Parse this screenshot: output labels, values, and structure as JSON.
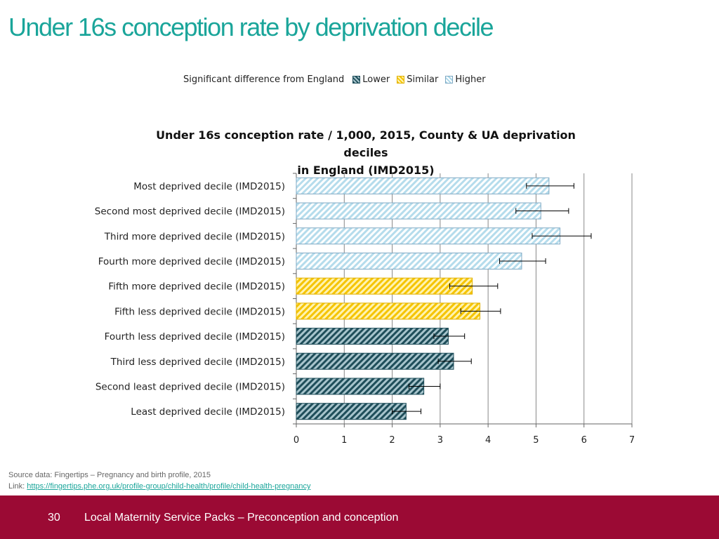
{
  "slide": {
    "title": "Under 16s conception rate by deprivation decile",
    "page_number": "30",
    "footer_text": "Local Maternity Service Packs – Preconception and conception",
    "source_label": "Source data: Fingertips – Pregnancy and birth profile, 2015",
    "link_label": "Link: ",
    "link_url": "https://fingertips.phe.org.uk/profile-group/child-health/profile/child-health-pregnancy"
  },
  "legend": {
    "title": "Significant difference from England",
    "items": [
      {
        "label": "Lower",
        "category": "lower"
      },
      {
        "label": "Similar",
        "category": "similar"
      },
      {
        "label": "Higher",
        "category": "higher"
      }
    ]
  },
  "colors": {
    "lower_dark": "#1f4e5a",
    "lower_light": "#a7c4cc",
    "similar_dark": "#f5c400",
    "similar_light": "#fff3b0",
    "higher_dark": "#a8d6e8",
    "higher_light": "#ffffff",
    "footer": "#9b0a34",
    "title": "#1aa59a"
  },
  "chart_data": {
    "type": "bar",
    "orientation": "horizontal",
    "title_line1": "Under 16s conception rate / 1,000, 2015, County & UA deprivation deciles",
    "title_line2": "in England (IMD2015)",
    "xlim": [
      0,
      7
    ],
    "xticks": [
      "0",
      "1",
      "2",
      "3",
      "4",
      "5",
      "6",
      "7"
    ],
    "grid": true,
    "categories": [
      "Most deprived decile (IMD2015)",
      "Second most deprived decile (IMD2015)",
      "Third more deprived decile (IMD2015)",
      "Fourth more deprived decile (IMD2015)",
      "Fifth more deprived decile (IMD2015)",
      "Fifth less deprived decile (IMD2015)",
      "Fourth less deprived decile (IMD2015)",
      "Third less deprived decile (IMD2015)",
      "Second least deprived decile (IMD2015)",
      "Least deprived decile (IMD2015)"
    ],
    "values": [
      5.27,
      5.1,
      5.5,
      4.7,
      3.67,
      3.83,
      3.17,
      3.28,
      2.66,
      2.29
    ],
    "ci_lower": [
      4.8,
      4.58,
      4.92,
      4.24,
      3.2,
      3.43,
      2.87,
      2.96,
      2.35,
      2.0
    ],
    "ci_upper": [
      5.79,
      5.68,
      6.15,
      5.2,
      4.2,
      4.26,
      3.51,
      3.65,
      3.0,
      2.6
    ],
    "significance": [
      "higher",
      "higher",
      "higher",
      "higher",
      "similar",
      "similar",
      "lower",
      "lower",
      "lower",
      "lower"
    ]
  }
}
